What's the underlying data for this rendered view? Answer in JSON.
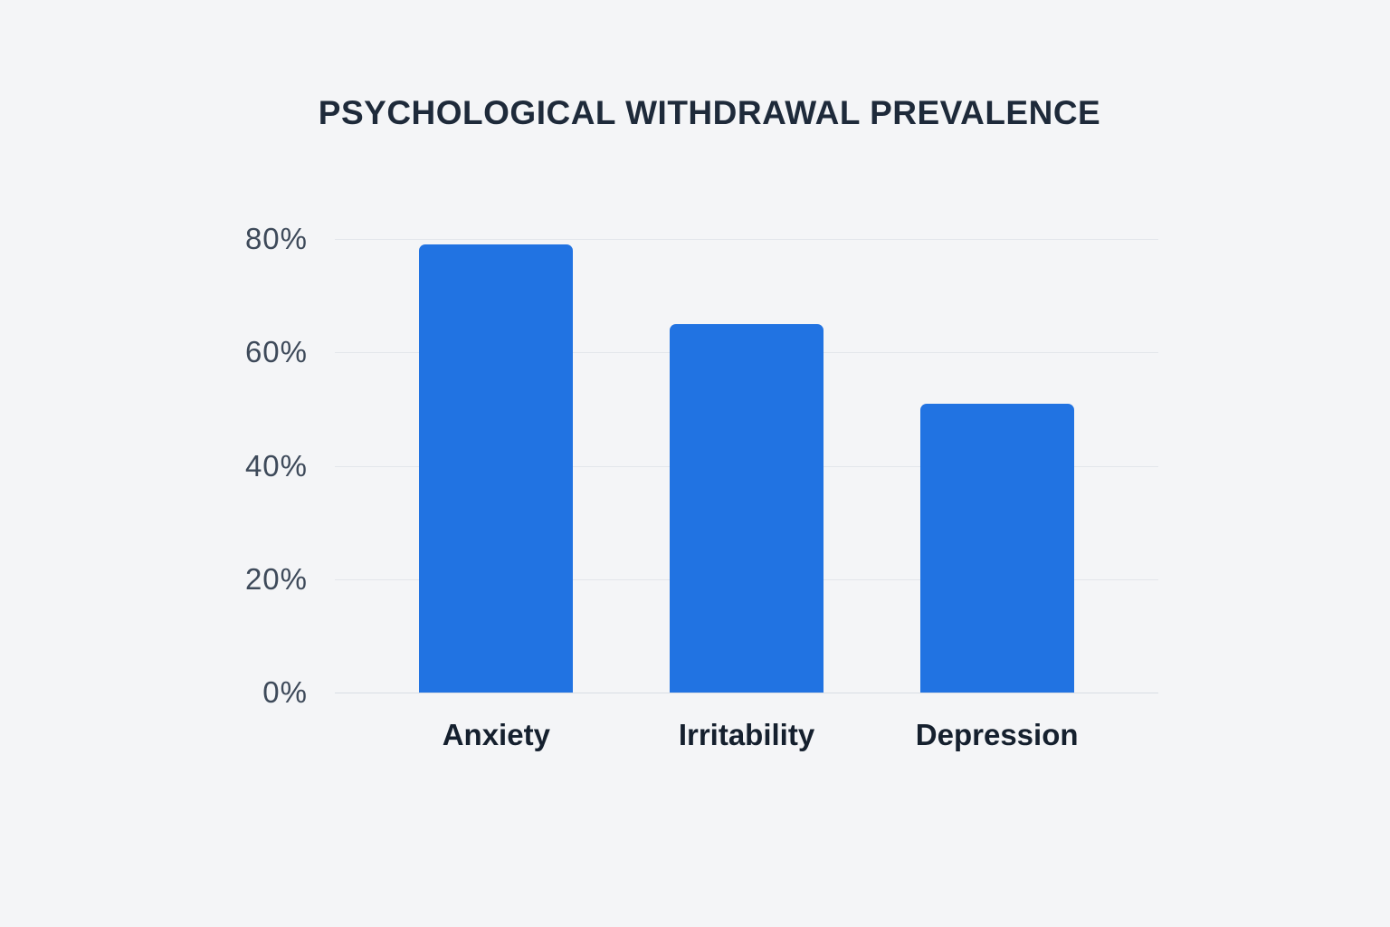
{
  "chart": {
    "title": "PSYCHOLOGICAL WITHDRAWAL PREVALENCE"
  },
  "chart_data": {
    "type": "bar",
    "title": "PSYCHOLOGICAL WITHDRAWAL PREVALENCE",
    "categories": [
      "Anxiety",
      "Irritability",
      "Depression"
    ],
    "values": [
      79,
      65,
      51
    ],
    "xlabel": "",
    "ylabel": "",
    "ylim": [
      0,
      80
    ],
    "yticks": [
      0,
      20,
      40,
      60,
      80
    ],
    "ytick_labels": [
      "0%",
      "20%",
      "40%",
      "60%",
      "80%"
    ],
    "grid": true,
    "legend": "none",
    "bar_color": "#2173e2",
    "background_color": "#f4f5f7",
    "title_color": "#1e2a3a"
  }
}
